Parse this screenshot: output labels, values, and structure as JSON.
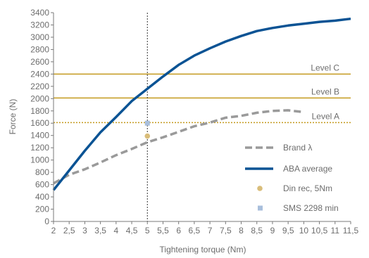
{
  "chart_data": {
    "type": "line",
    "xlabel": "Tightening torque (Nm)",
    "ylabel": "Force (N)",
    "xlim": [
      2,
      11.5
    ],
    "ylim": [
      0,
      3400
    ],
    "x_ticks": [
      2,
      2.5,
      3,
      3.5,
      4,
      4.5,
      5,
      5.5,
      6,
      6.5,
      7,
      7.5,
      8,
      8.5,
      9,
      9.5,
      10,
      10.5,
      11,
      11.5
    ],
    "x_tick_labels": [
      "2",
      "2,5",
      "3",
      "3,5",
      "4",
      "4,5",
      "5",
      "5,5",
      "6",
      "6,5",
      "7",
      "7,5",
      "8",
      "8,5",
      "9",
      "9,5",
      "10",
      "10,5",
      "11",
      "11,5"
    ],
    "y_ticks": [
      0,
      200,
      400,
      600,
      800,
      1000,
      1200,
      1400,
      1600,
      1800,
      2000,
      2200,
      2400,
      2600,
      2800,
      3000,
      3200,
      3400
    ],
    "y_tick_labels": [
      "0",
      "200",
      "400",
      "600",
      "800",
      "1000",
      "1200",
      "1400",
      "1600",
      "1800",
      "2000",
      "2200",
      "2400",
      "2600",
      "2800",
      "3000",
      "3200",
      "3400"
    ],
    "grid": false,
    "legend_position": "right",
    "colors": {
      "brand": "#9a9a9a",
      "aba": "#0b5394",
      "level": "#c49a1e",
      "din": "#d9bd7a",
      "sms": "#a9bfdc",
      "axis": "#7a7a7a",
      "ref_line": "#333333"
    },
    "series": [
      {
        "name": "Brand λ",
        "style": "dashed",
        "x": [
          2,
          2.5,
          3,
          3.5,
          4,
          4.5,
          5,
          5.5,
          6,
          6.5,
          7,
          7.5,
          8,
          8.5,
          9,
          9.5,
          10
        ],
        "y": [
          620,
          760,
          850,
          960,
          1080,
          1180,
          1290,
          1370,
          1460,
          1550,
          1610,
          1690,
          1720,
          1770,
          1800,
          1810,
          1780
        ]
      },
      {
        "name": "ABA average",
        "style": "solid",
        "x": [
          2,
          2.5,
          3,
          3.5,
          4,
          4.5,
          5,
          5.5,
          6,
          6.5,
          7,
          7.5,
          8,
          8.5,
          9,
          9.5,
          10,
          10.5,
          11,
          11.5
        ],
        "y": [
          510,
          830,
          1150,
          1450,
          1700,
          1960,
          2160,
          2360,
          2550,
          2700,
          2820,
          2930,
          3020,
          3100,
          3150,
          3190,
          3220,
          3250,
          3270,
          3300
        ]
      },
      {
        "name": "Din rec, 5Nm",
        "style": "point",
        "x": [
          5
        ],
        "y": [
          1390
        ]
      },
      {
        "name": "SMS 2298 min",
        "style": "point",
        "x": [
          5
        ],
        "y": [
          1600
        ]
      }
    ],
    "levels": [
      {
        "label": "Level C",
        "y": 2400,
        "style": "solid"
      },
      {
        "label": "Level B",
        "y": 2010,
        "style": "solid"
      },
      {
        "label": "Level A",
        "y": 1610,
        "style": "dotted"
      }
    ],
    "reference_x": 5
  }
}
